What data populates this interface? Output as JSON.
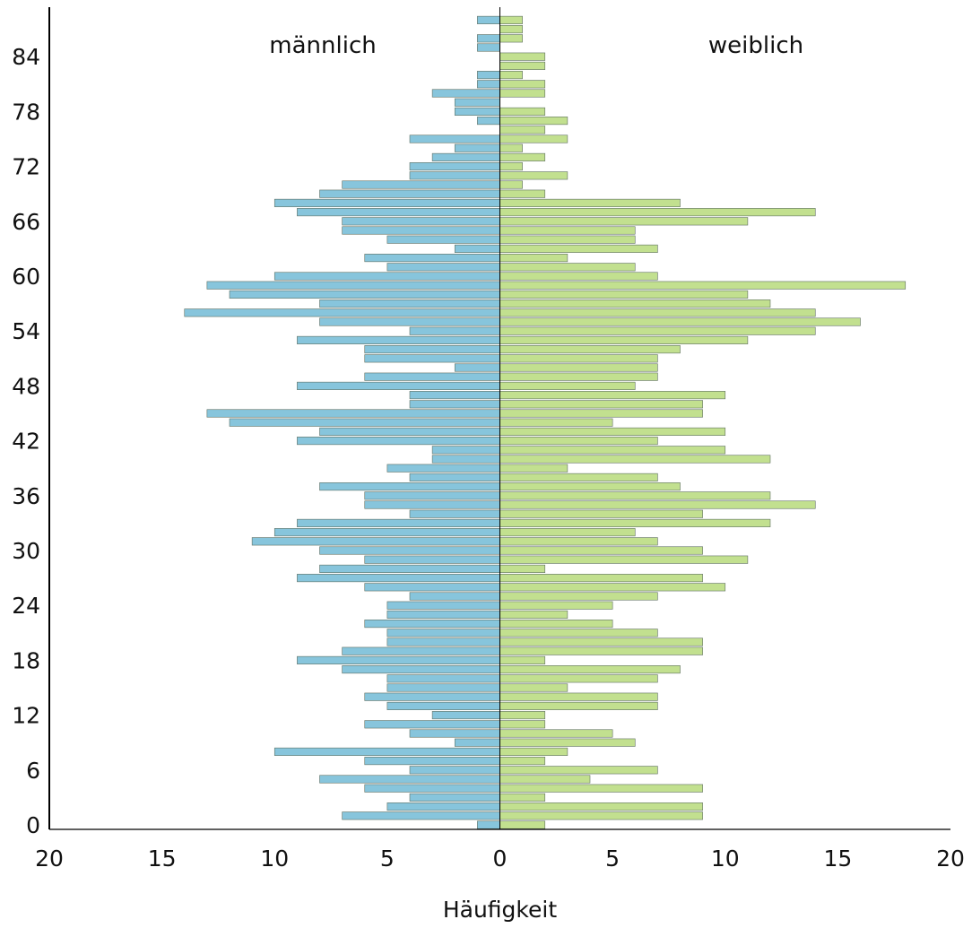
{
  "chart_data": {
    "type": "bar",
    "orientation": "horizontal",
    "xlabel": "Häufigkeit",
    "ylabel": "",
    "xlim": [
      -20,
      20
    ],
    "xticks": [
      -20,
      -15,
      -10,
      -5,
      0,
      5,
      10,
      15,
      20
    ],
    "xtick_labels": [
      "20",
      "15",
      "10",
      "5",
      "0",
      "5",
      "10",
      "15",
      "20"
    ],
    "ylim": [
      0,
      89
    ],
    "yticks": [
      0,
      6,
      12,
      18,
      24,
      30,
      36,
      42,
      48,
      54,
      60,
      66,
      72,
      78,
      84
    ],
    "ytick_labels": [
      "0",
      "6",
      "12",
      "18",
      "24",
      "30",
      "36",
      "42",
      "48",
      "54",
      "60",
      "66",
      "72",
      "78",
      "84"
    ],
    "categories": [
      0,
      1,
      2,
      3,
      4,
      5,
      6,
      7,
      8,
      9,
      10,
      11,
      12,
      13,
      14,
      15,
      16,
      17,
      18,
      19,
      20,
      21,
      22,
      23,
      24,
      25,
      26,
      27,
      28,
      29,
      30,
      31,
      32,
      33,
      34,
      35,
      36,
      37,
      38,
      39,
      40,
      41,
      42,
      43,
      44,
      45,
      46,
      47,
      48,
      49,
      50,
      51,
      52,
      53,
      54,
      55,
      56,
      57,
      58,
      59,
      60,
      61,
      62,
      63,
      64,
      65,
      66,
      67,
      68,
      69,
      70,
      71,
      72,
      73,
      74,
      75,
      76,
      77,
      78,
      79,
      80,
      81,
      82,
      83,
      84,
      85,
      86,
      87,
      88
    ],
    "group_labels": {
      "left": "männlich",
      "right": "weiblich"
    },
    "series": [
      {
        "name": "männlich",
        "side": "left",
        "color": "#87c5dc",
        "values": [
          1,
          7,
          5,
          4,
          6,
          8,
          4,
          6,
          10,
          2,
          4,
          6,
          3,
          5,
          6,
          5,
          5,
          7,
          9,
          7,
          5,
          5,
          6,
          5,
          5,
          4,
          6,
          9,
          8,
          6,
          8,
          11,
          10,
          9,
          4,
          6,
          6,
          8,
          4,
          5,
          3,
          3,
          9,
          8,
          12,
          13,
          4,
          4,
          9,
          6,
          2,
          6,
          6,
          9,
          4,
          8,
          14,
          8,
          12,
          13,
          10,
          5,
          6,
          2,
          5,
          7,
          7,
          9,
          10,
          8,
          7,
          4,
          4,
          3,
          2,
          4,
          0,
          1,
          2,
          2,
          3,
          1,
          1,
          0,
          0,
          1,
          1,
          0,
          1
        ]
      },
      {
        "name": "weiblich",
        "side": "right",
        "color": "#c2e08f",
        "values": [
          2,
          9,
          9,
          2,
          9,
          4,
          7,
          2,
          3,
          6,
          5,
          2,
          2,
          7,
          7,
          3,
          7,
          8,
          2,
          9,
          9,
          7,
          5,
          3,
          5,
          7,
          10,
          9,
          2,
          11,
          9,
          7,
          6,
          12,
          9,
          14,
          12,
          8,
          7,
          3,
          12,
          10,
          7,
          10,
          5,
          9,
          9,
          10,
          6,
          7,
          7,
          7,
          8,
          11,
          14,
          16,
          14,
          12,
          11,
          18,
          7,
          6,
          3,
          7,
          6,
          6,
          11,
          14,
          8,
          2,
          1,
          3,
          1,
          2,
          1,
          3,
          2,
          3,
          2,
          0,
          2,
          2,
          1,
          2,
          2,
          0,
          1,
          1,
          1
        ]
      }
    ]
  }
}
